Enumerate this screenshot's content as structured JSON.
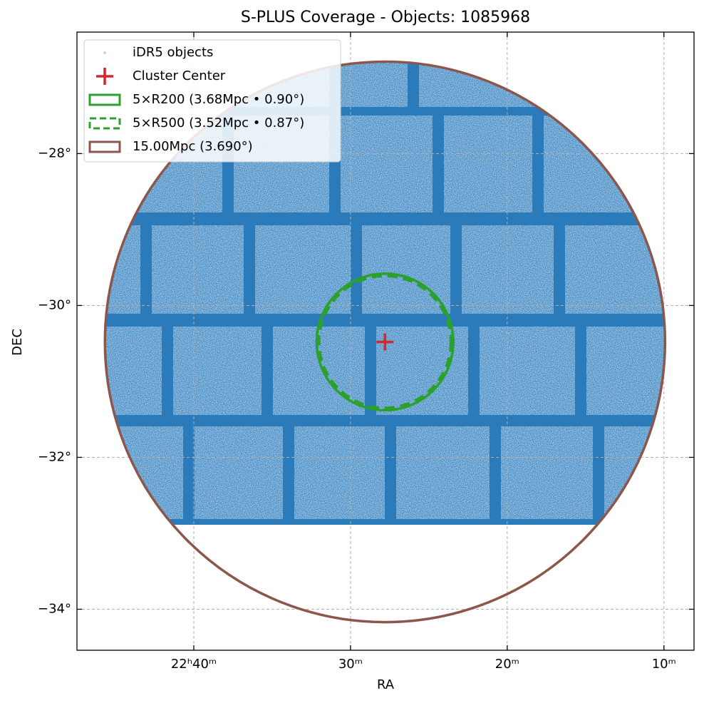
{
  "chart_data": {
    "type": "skymap",
    "title": "S-PLUS Coverage - Objects: 1085968",
    "x_label": "RA",
    "y_label": "DEC",
    "xlim": [
      341.864,
      332.02
    ],
    "ylim": [
      -34.54,
      -26.4
    ],
    "xticks": [
      {
        "value": 340,
        "label": "22ʰ40ᵐ"
      },
      {
        "value": 337.5,
        "label": "30ᵐ"
      },
      {
        "value": 335,
        "label": "20ᵐ"
      },
      {
        "value": 332.5,
        "label": "10ᵐ"
      }
    ],
    "yticks": [
      {
        "value": -28,
        "label": "−28°"
      },
      {
        "value": -30,
        "label": "−30°"
      },
      {
        "value": -32,
        "label": "−32°"
      },
      {
        "value": -34,
        "label": "−34°"
      }
    ],
    "grid": true,
    "legend": "upper left",
    "series": [
      {
        "name": "iDR5 objects",
        "kind": "points",
        "color": "#1f77b4"
      },
      {
        "name": "Cluster Center",
        "kind": "marker",
        "color": "#d62728",
        "x": [
          336.95
        ],
        "y": [
          -30.48
        ]
      },
      {
        "name": "5×R200 (3.68Mpc • 0.90°)",
        "kind": "circle",
        "color": "#2ca02c",
        "style": "solid",
        "x": [
          336.95
        ],
        "y": [
          -30.48
        ],
        "radius": 0.9
      },
      {
        "name": "5×R500 (3.52Mpc • 0.87°)",
        "kind": "circle",
        "color": "#2ca02c",
        "style": "dashed",
        "x": [
          336.95
        ],
        "y": [
          -30.48
        ],
        "radius": 0.87
      },
      {
        "name": "15.00Mpc (3.690°)",
        "kind": "circle",
        "color": "#8c564b",
        "style": "solid",
        "x": [
          336.95
        ],
        "y": [
          -30.48
        ],
        "radius": 3.69
      }
    ]
  }
}
